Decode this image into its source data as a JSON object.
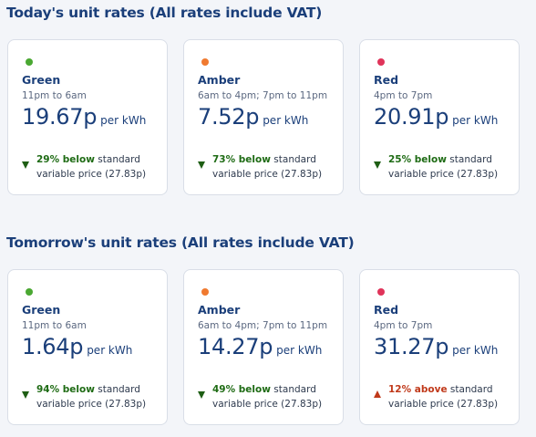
{
  "sections": [
    {
      "title": "Today's unit rates (All rates include VAT)",
      "cards": [
        {
          "name": "Green",
          "time": "11pm to 6am",
          "price": "19.67p",
          "unit": "per kWh",
          "diff": "29% below",
          "direction": "below",
          "rest1": "standard",
          "rest2": "variable price (27.83p)",
          "dot_color": "#4aa832"
        },
        {
          "name": "Amber",
          "time": "6am to 4pm; 7pm to 11pm",
          "price": "7.52p",
          "unit": "per kWh",
          "diff": "73% below",
          "direction": "below",
          "rest1": "standard",
          "rest2": "variable price (27.83p)",
          "dot_color": "#f07a30"
        },
        {
          "name": "Red",
          "time": "4pm to 7pm",
          "price": "20.91p",
          "unit": "per kWh",
          "diff": "25% below",
          "direction": "below",
          "rest1": "standard",
          "rest2": "variable price (27.83p)",
          "dot_color": "#e0345a"
        }
      ]
    },
    {
      "title": "Tomorrow's unit rates (All rates include VAT)",
      "cards": [
        {
          "name": "Green",
          "time": "11pm to 6am",
          "price": "1.64p",
          "unit": "per kWh",
          "diff": "94% below",
          "direction": "below",
          "rest1": "standard",
          "rest2": "variable price (27.83p)",
          "dot_color": "#4aa832"
        },
        {
          "name": "Amber",
          "time": "6am to 4pm; 7pm to 11pm",
          "price": "14.27p",
          "unit": "per kWh",
          "diff": "49% below",
          "direction": "below",
          "rest1": "standard",
          "rest2": "variable price (27.83p)",
          "dot_color": "#f07a30"
        },
        {
          "name": "Red",
          "time": "4pm to 7pm",
          "price": "31.27p",
          "unit": "per kWh",
          "diff": "12% above",
          "direction": "above",
          "rest1": "standard",
          "rest2": "variable price (27.83p)",
          "dot_color": "#e0345a"
        }
      ]
    }
  ]
}
